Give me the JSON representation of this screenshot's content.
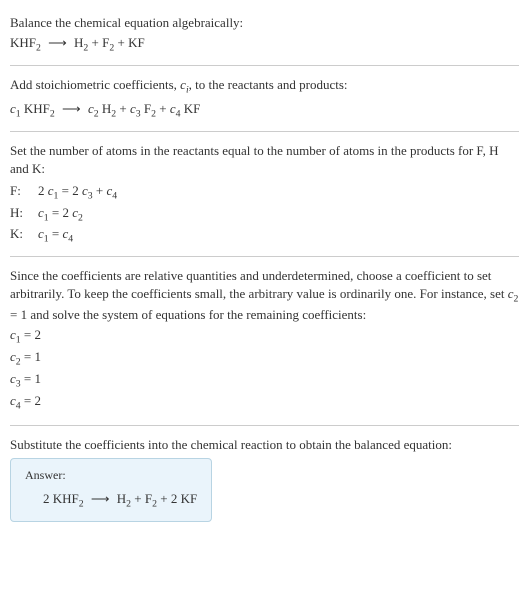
{
  "colors": {
    "text": "#333333",
    "background": "#ffffff",
    "divider": "#cccccc",
    "answer_bg": "#eaf4fb",
    "answer_border": "#b8d4e3"
  },
  "typography": {
    "body_fontsize": 13,
    "answer_label_fontsize": 12,
    "font_family": "Georgia, Times New Roman, serif"
  },
  "section1": {
    "title": "Balance the chemical equation algebraically:",
    "reactant": "KHF",
    "reactant_sub": "2",
    "arrow": "⟶",
    "p1": "H",
    "p1_sub": "2",
    "p2": "F",
    "p2_sub": "2",
    "p3": "KF"
  },
  "section2": {
    "title_pre": "Add stoichiometric coefficients, ",
    "ci_c": "c",
    "ci_i": "i",
    "title_post": ", to the reactants and products:",
    "c1": "c",
    "c1n": "1",
    "r1": "KHF",
    "r1_sub": "2",
    "arrow": "⟶",
    "c2": "c",
    "c2n": "2",
    "p1": "H",
    "p1_sub": "2",
    "c3": "c",
    "c3n": "3",
    "p2": "F",
    "p2_sub": "2",
    "c4": "c",
    "c4n": "4",
    "p3": "KF"
  },
  "section3": {
    "title": "Set the number of atoms in the reactants equal to the number of atoms in the products for F, H and K:",
    "rows": [
      {
        "label": "F:",
        "lhs_coef": "2",
        "lhs_c": "c",
        "lhs_n": "1",
        "eq": " = ",
        "rhs_coef1": "2",
        "rhs_c1": "c",
        "rhs_n1": "3",
        "plus": " + ",
        "rhs_c2": "c",
        "rhs_n2": "4"
      },
      {
        "label": "H:",
        "lhs_c": "c",
        "lhs_n": "1",
        "eq": " = ",
        "rhs_coef1": "2",
        "rhs_c1": "c",
        "rhs_n1": "2"
      },
      {
        "label": "K:",
        "lhs_c": "c",
        "lhs_n": "1",
        "eq": " = ",
        "rhs_c1": "c",
        "rhs_n1": "4"
      }
    ]
  },
  "section4": {
    "title_pre": "Since the coefficients are relative quantities and underdetermined, choose a coefficient to set arbitrarily. To keep the coefficients small, the arbitrary value is ordinarily one. For instance, set ",
    "c": "c",
    "cn": "2",
    "cval": " = 1",
    "title_post": " and solve the system of equations for the remaining coefficients:",
    "coeffs": [
      {
        "c": "c",
        "n": "1",
        "val": " = 2"
      },
      {
        "c": "c",
        "n": "2",
        "val": " = 1"
      },
      {
        "c": "c",
        "n": "3",
        "val": " = 1"
      },
      {
        "c": "c",
        "n": "4",
        "val": " = 2"
      }
    ]
  },
  "section5": {
    "title": "Substitute the coefficients into the chemical reaction to obtain the balanced equation:"
  },
  "answer": {
    "label": "Answer:",
    "lhs_coef": "2 ",
    "lhs": "KHF",
    "lhs_sub": "2",
    "arrow": "⟶",
    "p1": "H",
    "p1_sub": "2",
    "p2": "F",
    "p2_sub": "2",
    "p3_coef": "2 ",
    "p3": "KF"
  }
}
